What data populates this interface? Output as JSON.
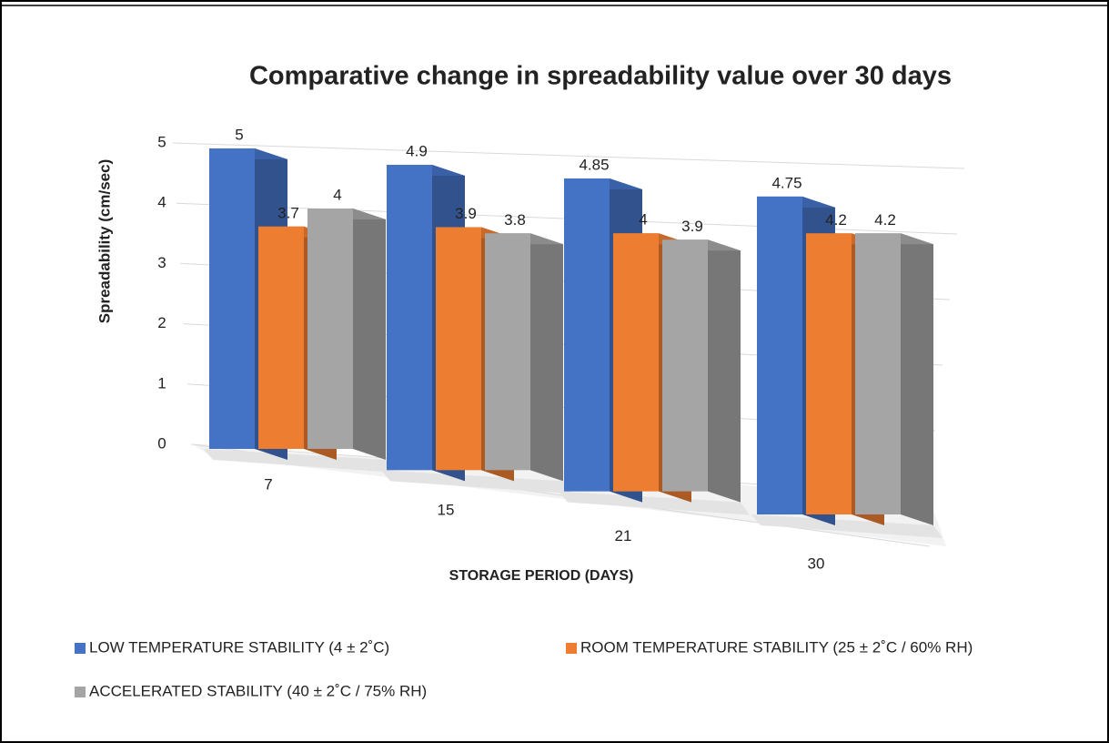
{
  "chart_data": {
    "type": "bar3d",
    "title": "Comparative change in spreadability value over 30 days",
    "y_label": "Spreadability (cm/sec)",
    "x_label": "STORAGE PERIOD (DAYS)",
    "categories": [
      "7",
      "15",
      "21",
      "30"
    ],
    "series": [
      {
        "name": "LOW TEMPERATURE STABILITY (4 ± 2˚C)",
        "color": "#4472c4",
        "values": [
          5,
          4.9,
          4.85,
          4.75
        ]
      },
      {
        "name": "ROOM TEMPERATURE STABILITY (25 ± 2˚C / 60% RH)",
        "color": "#ed7d31",
        "values": [
          3.7,
          3.9,
          4,
          4.2
        ]
      },
      {
        "name": "ACCELERATED STABILITY (40 ± 2˚C / 75% RH)",
        "color": "#a5a5a5",
        "values": [
          4,
          3.8,
          3.9,
          4.2
        ]
      }
    ],
    "ylim": [
      0,
      5
    ],
    "yticks": [
      0,
      1,
      2,
      3,
      4,
      5
    ],
    "grid": true,
    "legend": "bottom"
  }
}
